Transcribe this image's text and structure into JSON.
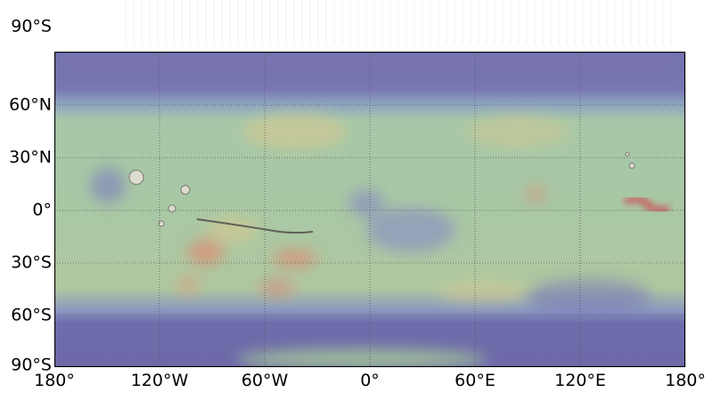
{
  "map": {
    "top_label": "90°S",
    "lat_labels": [
      "60°N",
      "30°N",
      "0°",
      "30°S",
      "60°S",
      "90°S"
    ],
    "lon_labels": [
      "180°",
      "120°W",
      "60°W",
      "0°",
      "60°E",
      "120°E",
      "180°"
    ],
    "colors": {
      "high_lat": "#6e6aaa",
      "mid": "#9cc49c",
      "warm": "#d8c88c",
      "hot": "#c86a6a",
      "frame": "#000000",
      "grid": "#555555"
    }
  }
}
